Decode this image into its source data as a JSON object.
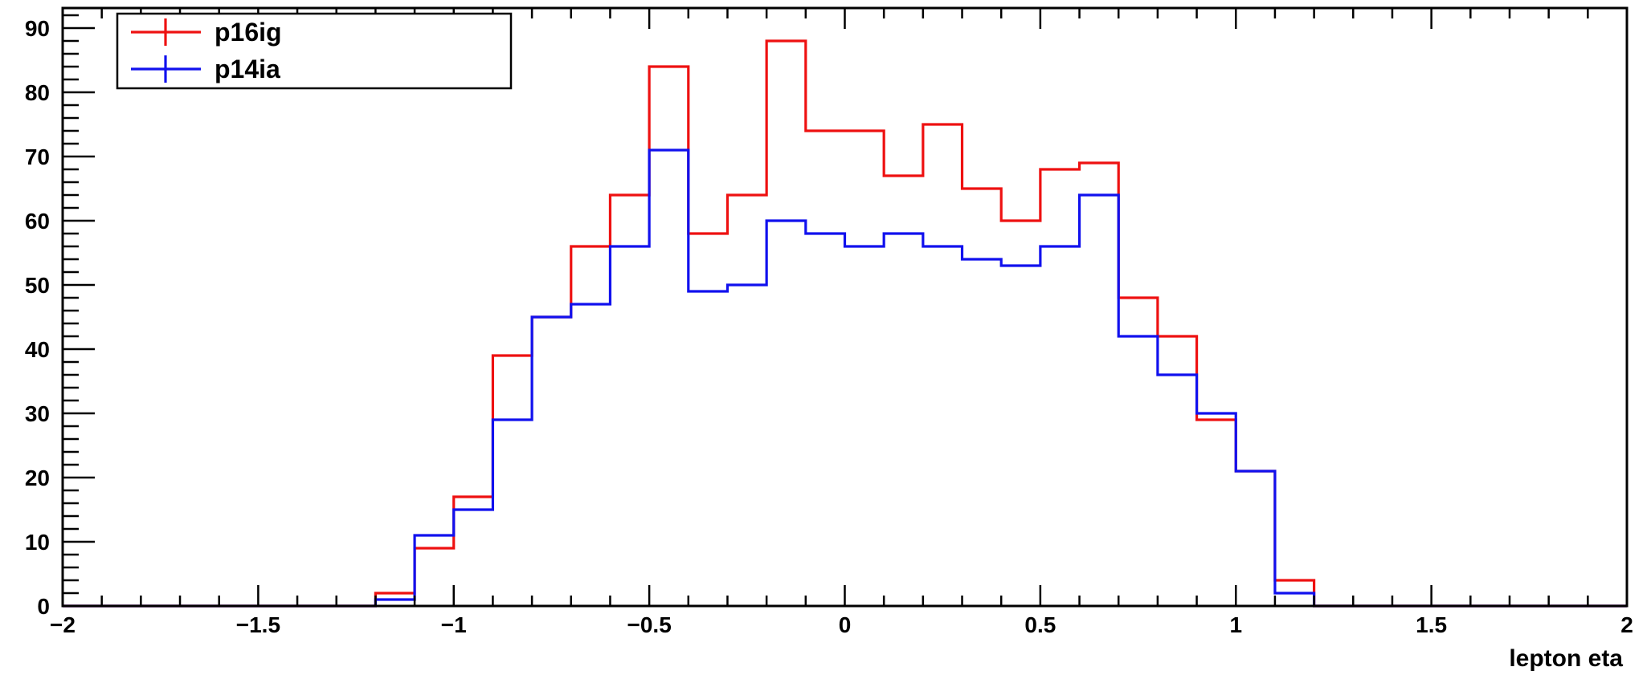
{
  "chart_data": {
    "type": "histogram",
    "title": "",
    "xlabel": "lepton eta",
    "ylabel": "",
    "xlim": [
      -2,
      2
    ],
    "ylim": [
      0,
      92
    ],
    "bin_edges": [
      -2.0,
      -1.9,
      -1.8,
      -1.7,
      -1.6,
      -1.5,
      -1.4,
      -1.3,
      -1.2,
      -1.1,
      -1.0,
      -0.9,
      -0.8,
      -0.7,
      -0.6,
      -0.5,
      -0.4,
      -0.3,
      -0.2,
      -0.1,
      0.0,
      0.1,
      0.2,
      0.3,
      0.4,
      0.5,
      0.6,
      0.7,
      0.8,
      0.9,
      1.0,
      1.1,
      1.2,
      1.3,
      1.4,
      1.5,
      1.6,
      1.7,
      1.8,
      1.9,
      2.0
    ],
    "x_ticks": [
      -2,
      -1.5,
      -1,
      -0.5,
      0,
      0.5,
      1,
      1.5,
      2
    ],
    "x_tick_labels": [
      "−2",
      "−1.5",
      "−1",
      "−0.5",
      "0",
      "0.5",
      "1",
      "1.5",
      "2"
    ],
    "y_ticks": [
      0,
      10,
      20,
      30,
      40,
      50,
      60,
      70,
      80,
      90
    ],
    "y_tick_labels": [
      "0",
      "10",
      "20",
      "30",
      "40",
      "50",
      "60",
      "70",
      "80",
      "90"
    ],
    "legend_position": "top-left",
    "series": [
      {
        "name": "p16ig",
        "color": "#ee1111",
        "values": [
          0,
          0,
          0,
          0,
          0,
          0,
          0,
          0,
          2,
          9,
          17,
          39,
          45,
          56,
          64,
          84,
          58,
          64,
          88,
          74,
          74,
          67,
          75,
          65,
          60,
          68,
          69,
          48,
          42,
          29,
          21,
          4,
          0,
          0,
          0,
          0,
          0,
          0,
          0,
          0
        ]
      },
      {
        "name": "p14ia",
        "color": "#1111ee",
        "values": [
          0,
          0,
          0,
          0,
          0,
          0,
          0,
          0,
          1,
          11,
          15,
          29,
          45,
          47,
          56,
          71,
          49,
          50,
          60,
          58,
          56,
          58,
          56,
          54,
          53,
          56,
          64,
          42,
          36,
          30,
          21,
          2,
          0,
          0,
          0,
          0,
          0,
          0,
          0,
          0
        ]
      }
    ]
  }
}
